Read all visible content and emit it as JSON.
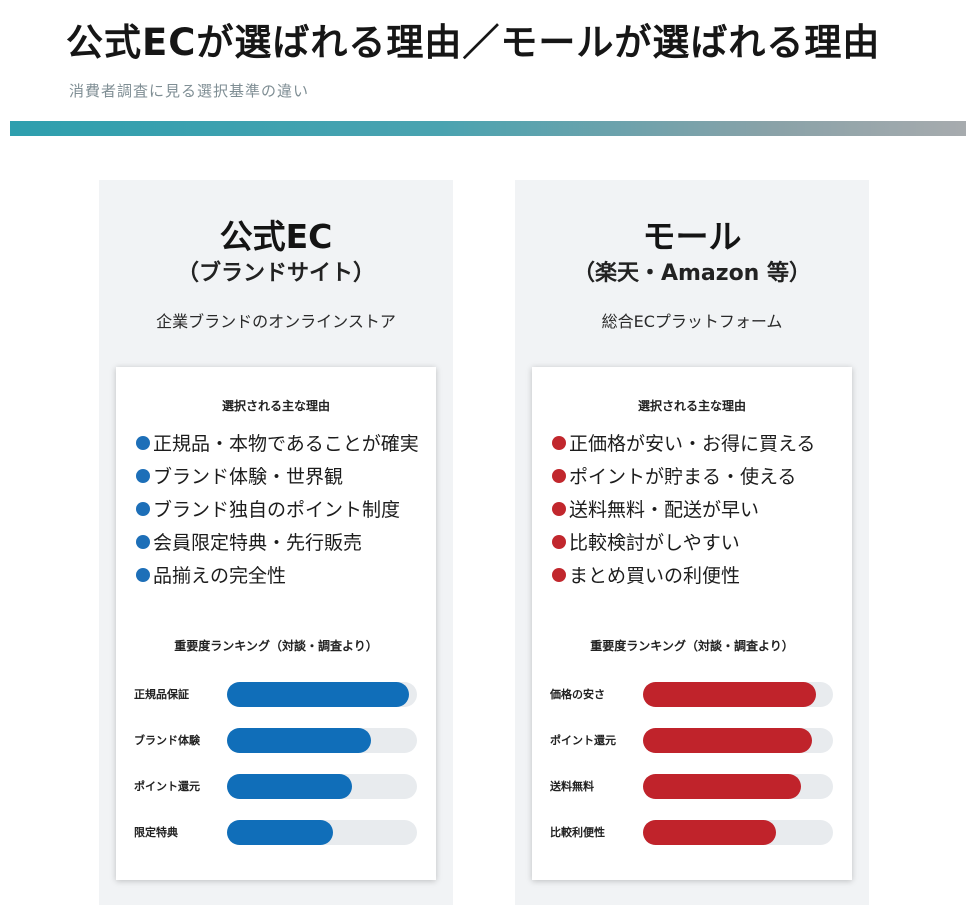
{
  "header": {
    "title": "公式ECが選ばれる理由／モールが選ばれる理由",
    "subtitle": "消費者調査に見る選択基準の違い"
  },
  "colors": {
    "official_accent": "#106eb9",
    "mall_accent": "#c0232b",
    "divider_start": "#2e9fae",
    "divider_end": "#a7abae"
  },
  "official": {
    "title": "公式EC",
    "subtitle": "（ブランドサイト）",
    "description": "企業ブランドのオンラインストア",
    "reasons_heading": "選択される主な理由",
    "reasons": [
      "正規品・本物であることが確実",
      "ブランド体験・世界観",
      "ブランド独自のポイント制度",
      "会員限定特典・先行販売",
      "品揃えの完全性"
    ],
    "ranking_heading": "重要度ランキング（対談・調査より）",
    "ranking": [
      {
        "label": "正規品保証",
        "level": 0.96
      },
      {
        "label": "ブランド体験",
        "level": 0.76
      },
      {
        "label": "ポイント還元",
        "level": 0.66
      },
      {
        "label": "限定特典",
        "level": 0.56
      }
    ]
  },
  "mall": {
    "title": "モール",
    "subtitle": "（楽天・Amazon 等）",
    "description": "総合ECプラットフォーム",
    "reasons_heading": "選択される主な理由",
    "reasons": [
      "正価格が安い・お得に買える",
      "ポイントが貯まる・使える",
      "送料無料・配送が早い",
      "比較検討がしやすい",
      "まとめ買いの利便性"
    ],
    "ranking_heading": "重要度ランキング（対談・調査より）",
    "ranking": [
      {
        "label": "価格の安さ",
        "level": 0.91
      },
      {
        "label": "ポイント還元",
        "level": 0.89
      },
      {
        "label": "送料無料",
        "level": 0.83
      },
      {
        "label": "比較利便性",
        "level": 0.7
      }
    ]
  }
}
